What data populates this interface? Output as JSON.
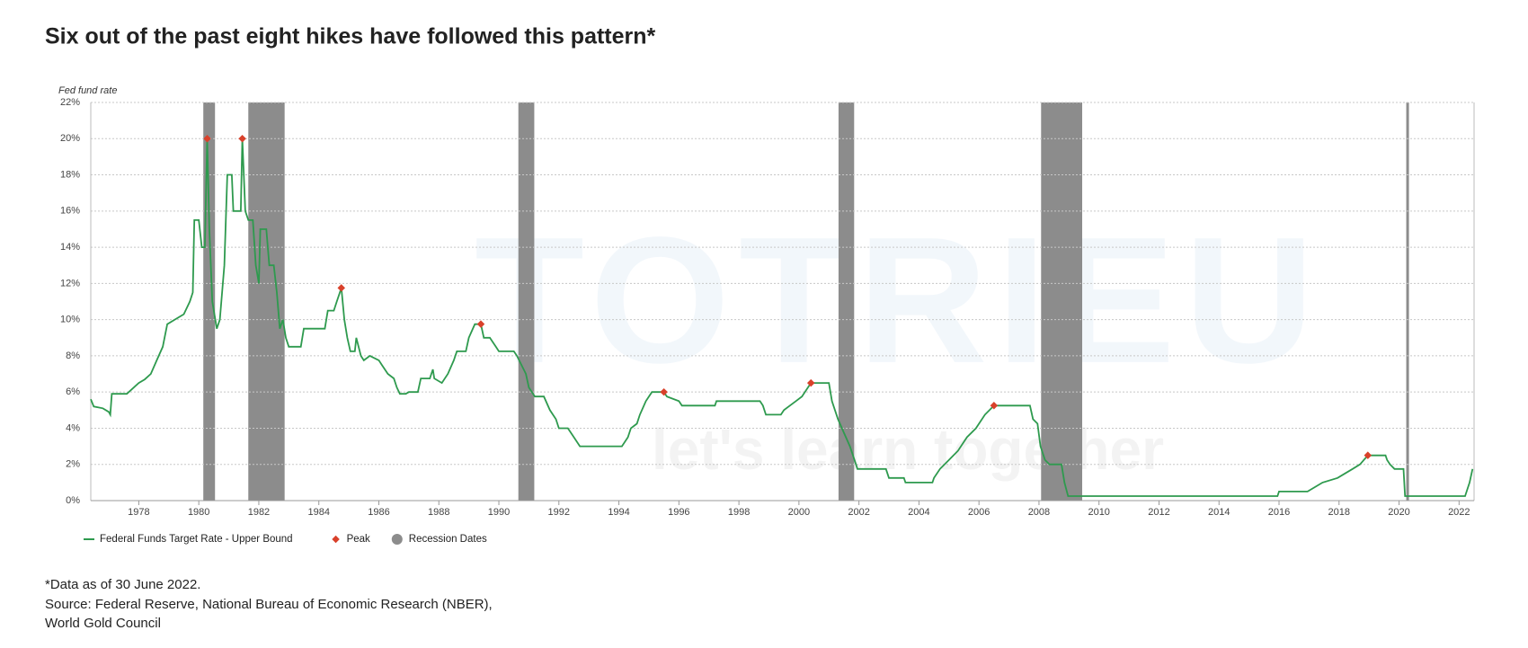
{
  "chart_data": {
    "type": "line",
    "title": "Six out of the past eight hikes have followed this pattern*",
    "y_axis_label": "Fed fund rate",
    "legend": "bottom-left",
    "grid": true,
    "xlim": [
      1976.4,
      2022.5
    ],
    "ylim": [
      0,
      22
    ],
    "xticks": [
      1978,
      1980,
      1982,
      1984,
      1986,
      1988,
      1990,
      1992,
      1994,
      1996,
      1998,
      2000,
      2002,
      2004,
      2006,
      2008,
      2010,
      2012,
      2014,
      2016,
      2018,
      2020,
      2022
    ],
    "yticks": [
      {
        "value": 0,
        "label": "0%"
      },
      {
        "value": 2,
        "label": "2%"
      },
      {
        "value": 4,
        "label": "4%"
      },
      {
        "value": 6,
        "label": "6%"
      },
      {
        "value": 8,
        "label": "8%"
      },
      {
        "value": 10,
        "label": "10%"
      },
      {
        "value": 12,
        "label": "12%"
      },
      {
        "value": 14,
        "label": "14%"
      },
      {
        "value": 16,
        "label": "16%"
      },
      {
        "value": 18,
        "label": "18%"
      },
      {
        "value": 20,
        "label": "20%"
      },
      {
        "value": 22,
        "label": "22%"
      }
    ],
    "x": [
      1976.4,
      1976.5,
      1976.8,
      1977.0,
      1977.05,
      1977.1,
      1977.6,
      1977.8,
      1978.0,
      1978.2,
      1978.4,
      1978.6,
      1978.8,
      1978.95,
      1979.2,
      1979.5,
      1979.7,
      1979.8,
      1979.85,
      1980.0,
      1980.1,
      1980.2,
      1980.28,
      1980.35,
      1980.45,
      1980.6,
      1980.7,
      1980.85,
      1980.95,
      1981.1,
      1981.15,
      1981.4,
      1981.45,
      1981.55,
      1981.65,
      1981.8,
      1981.9,
      1982.0,
      1982.05,
      1982.25,
      1982.35,
      1982.5,
      1982.6,
      1982.7,
      1982.8,
      1982.9,
      1983.0,
      1983.4,
      1983.5,
      1983.8,
      1984.2,
      1984.3,
      1984.5,
      1984.6,
      1984.75,
      1984.85,
      1984.95,
      1985.05,
      1985.2,
      1985.25,
      1985.4,
      1985.5,
      1985.7,
      1986.0,
      1986.1,
      1986.3,
      1986.5,
      1986.6,
      1986.7,
      1986.9,
      1987.0,
      1987.3,
      1987.4,
      1987.7,
      1987.8,
      1987.85,
      1988.1,
      1988.3,
      1988.5,
      1988.6,
      1988.9,
      1989.0,
      1989.2,
      1989.4,
      1989.5,
      1989.7,
      1989.9,
      1990.0,
      1990.5,
      1990.6,
      1990.9,
      1991.0,
      1991.2,
      1991.5,
      1991.7,
      1991.9,
      1992.0,
      1992.3,
      1992.5,
      1992.7,
      1994.1,
      1994.3,
      1994.4,
      1994.6,
      1994.7,
      1994.9,
      1995.1,
      1995.5,
      1995.6,
      1996.0,
      1996.1,
      1997.2,
      1997.25,
      1998.7,
      1998.8,
      1998.9,
      1999.4,
      1999.5,
      1999.7,
      1999.9,
      2000.1,
      2000.2,
      2000.4,
      2001.0,
      2001.1,
      2001.3,
      2001.5,
      2001.7,
      2001.8,
      2001.95,
      2002.9,
      2003.0,
      2003.5,
      2003.55,
      2004.45,
      2004.5,
      2004.7,
      2005.0,
      2005.3,
      2005.6,
      2005.9,
      2006.2,
      2006.5,
      2007.7,
      2007.8,
      2007.95,
      2008.05,
      2008.2,
      2008.35,
      2008.75,
      2008.85,
      2008.97,
      2015.95,
      2016.0,
      2016.95,
      2017.2,
      2017.45,
      2017.95,
      2018.2,
      2018.45,
      2018.7,
      2018.96,
      2019.55,
      2019.6,
      2019.7,
      2019.85,
      2020.15,
      2020.2,
      2022.2,
      2022.25,
      2022.35,
      2022.45
    ],
    "series": [
      {
        "name": "Federal Funds Target Rate - Upper Bound",
        "color": "#2e9a4e",
        "values": [
          5.6,
          5.2,
          5.1,
          4.9,
          4.75,
          5.9,
          5.9,
          6.2,
          6.5,
          6.7,
          7.0,
          7.75,
          8.5,
          9.75,
          10.0,
          10.3,
          11.0,
          11.5,
          15.5,
          15.5,
          14.0,
          14.0,
          20.0,
          15.0,
          11.0,
          9.5,
          10.0,
          13.0,
          18.0,
          18.0,
          16.0,
          16.0,
          20.0,
          16.0,
          15.5,
          15.5,
          13.0,
          12.0,
          15.0,
          15.0,
          13.0,
          13.0,
          11.5,
          9.5,
          10.0,
          9.0,
          8.5,
          8.5,
          9.5,
          9.5,
          9.5,
          10.5,
          10.5,
          11.0,
          11.75,
          10.0,
          9.0,
          8.25,
          8.25,
          9.0,
          8.0,
          7.75,
          8.0,
          7.75,
          7.5,
          7.0,
          6.75,
          6.25,
          5.9,
          5.9,
          6.0,
          6.0,
          6.75,
          6.75,
          7.25,
          6.75,
          6.5,
          7.0,
          7.75,
          8.25,
          8.25,
          9.0,
          9.75,
          9.75,
          9.0,
          9.0,
          8.5,
          8.25,
          8.25,
          8.0,
          7.0,
          6.25,
          5.75,
          5.75,
          5.0,
          4.5,
          4.0,
          4.0,
          3.5,
          3.0,
          3.0,
          3.5,
          4.0,
          4.25,
          4.75,
          5.5,
          6.0,
          6.0,
          5.75,
          5.5,
          5.25,
          5.25,
          5.5,
          5.5,
          5.25,
          4.75,
          4.75,
          5.0,
          5.25,
          5.5,
          5.75,
          6.0,
          6.5,
          6.5,
          5.5,
          4.5,
          3.75,
          3.0,
          2.5,
          1.75,
          1.75,
          1.25,
          1.25,
          1.0,
          1.0,
          1.25,
          1.75,
          2.25,
          2.75,
          3.5,
          4.0,
          4.75,
          5.25,
          5.25,
          4.5,
          4.25,
          3.0,
          2.25,
          2.0,
          2.0,
          1.0,
          0.25,
          0.25,
          0.5,
          0.5,
          0.75,
          1.0,
          1.25,
          1.5,
          1.75,
          2.0,
          2.5,
          2.5,
          2.25,
          2.0,
          1.75,
          1.75,
          0.25,
          0.25,
          0.5,
          1.0,
          1.75
        ]
      }
    ],
    "peaks": {
      "name": "Peak",
      "color": "#d9412b",
      "x": [
        1980.28,
        1981.45,
        1984.75,
        1989.4,
        1995.5,
        2000.4,
        2006.5,
        2018.96
      ],
      "values": [
        20.0,
        20.0,
        11.75,
        9.75,
        6.0,
        6.5,
        5.25,
        2.5
      ]
    },
    "recessions": {
      "name": "Recession Dates",
      "color": "#8c8c8c",
      "ranges": [
        [
          1980.15,
          1980.54
        ],
        [
          1981.65,
          1982.86
        ],
        [
          1990.65,
          1991.18
        ],
        [
          2001.32,
          2001.84
        ],
        [
          2008.07,
          2009.44
        ],
        [
          2020.24,
          2020.33
        ]
      ]
    },
    "watermark": [
      "TOTRIEU",
      "let's learn together"
    ]
  },
  "notes": [
    "*Data as of 30 June 2022.",
    "Source: Federal Reserve, National Bureau of Economic Research (NBER),",
    "World Gold Council"
  ]
}
